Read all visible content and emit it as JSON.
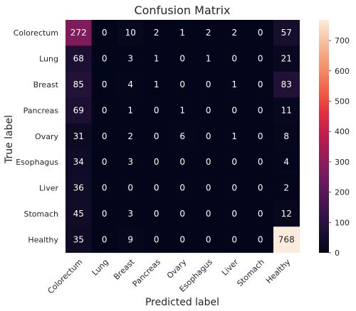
{
  "chart_data": {
    "type": "heatmap",
    "title": "Confusion Matrix",
    "xlabel": "Predicted label",
    "ylabel": "True label",
    "x_categories": [
      "Colorectum",
      "Lung",
      "Breast",
      "Pancreas",
      "Ovary",
      "Esophagus",
      "Liver",
      "Stomach",
      "Healthy"
    ],
    "y_categories": [
      "Colorectum",
      "Lung",
      "Breast",
      "Pancreas",
      "Ovary",
      "Esophagus",
      "Liver",
      "Stomach",
      "Healthy"
    ],
    "values": [
      [
        272,
        0,
        10,
        2,
        1,
        2,
        2,
        0,
        57
      ],
      [
        68,
        0,
        3,
        1,
        0,
        1,
        0,
        0,
        21
      ],
      [
        85,
        0,
        4,
        1,
        0,
        0,
        1,
        0,
        83
      ],
      [
        69,
        0,
        1,
        0,
        1,
        0,
        0,
        0,
        11
      ],
      [
        31,
        0,
        2,
        0,
        6,
        0,
        1,
        0,
        8
      ],
      [
        34,
        0,
        3,
        0,
        0,
        0,
        0,
        0,
        4
      ],
      [
        36,
        0,
        0,
        0,
        0,
        0,
        0,
        0,
        2
      ],
      [
        45,
        0,
        3,
        0,
        0,
        0,
        0,
        0,
        12
      ],
      [
        35,
        0,
        9,
        0,
        0,
        0,
        0,
        0,
        768
      ]
    ],
    "colorbar": {
      "colormap": "rocket",
      "range": [
        0,
        768
      ],
      "ticks": [
        0,
        100,
        200,
        300,
        400,
        500,
        600,
        700
      ]
    },
    "grid": false
  }
}
